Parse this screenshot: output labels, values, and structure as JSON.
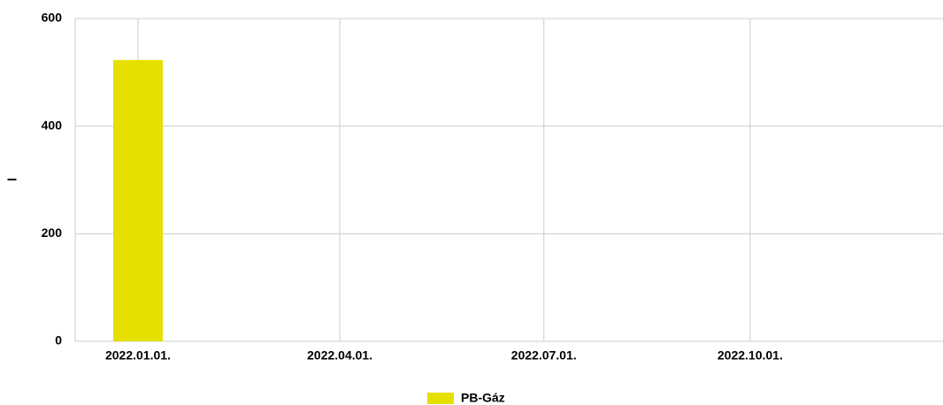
{
  "chart_data": {
    "type": "bar",
    "x": [
      "2022.01.01."
    ],
    "series": [
      {
        "name": "PB-Gáz",
        "color": "#e5e000",
        "values": [
          523
        ]
      }
    ],
    "xlim": [
      "2021.12.04.",
      "2022.12.26."
    ],
    "xticks": [
      "2022.01.01.",
      "2022.04.01.",
      "2022.07.01.",
      "2022.10.01."
    ],
    "ylim": [
      0,
      600
    ],
    "yticks": [
      0,
      200,
      400,
      600
    ],
    "ylabel": "l",
    "grid": true,
    "legend": "bottom"
  }
}
